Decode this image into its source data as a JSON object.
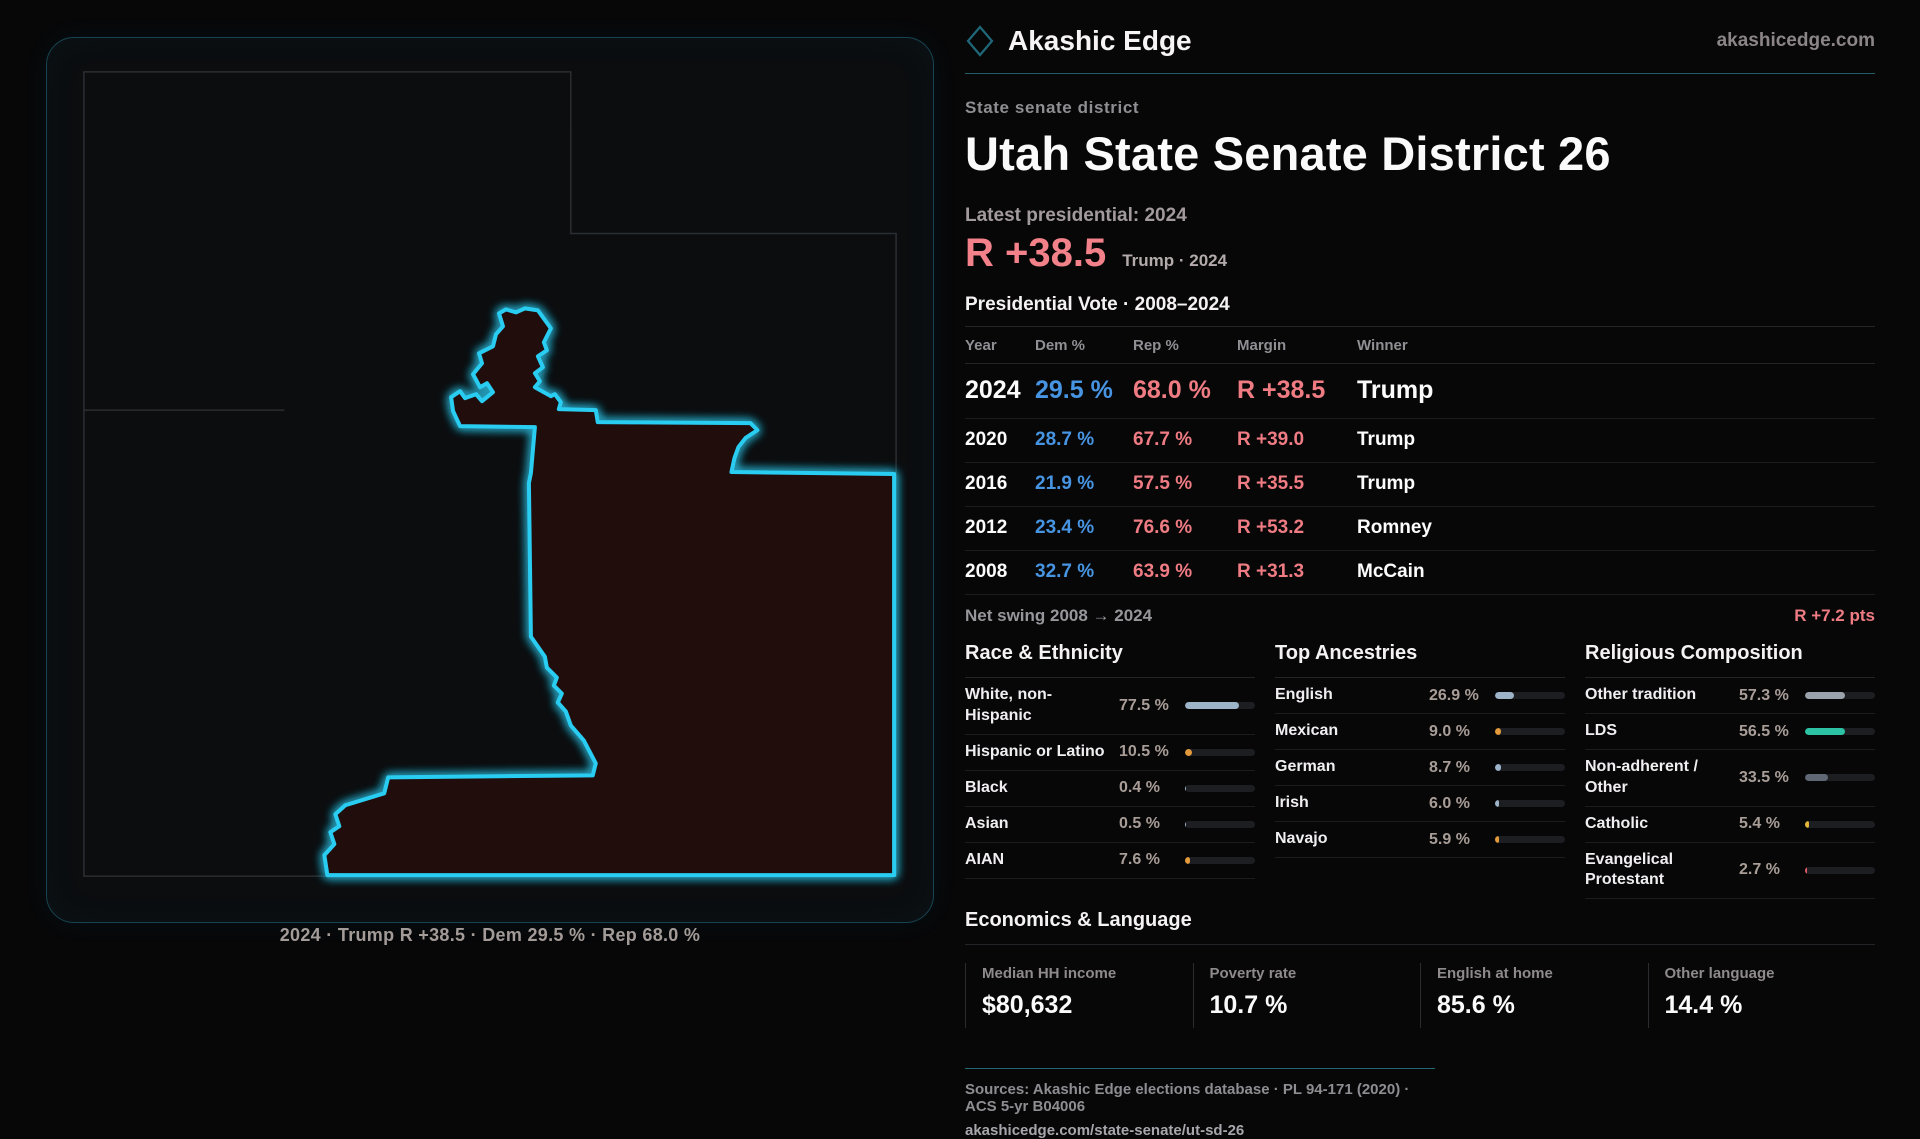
{
  "brand": {
    "name": "Akashic Edge",
    "url": "akashicedge.com",
    "accent_teal": "#2bcdf2",
    "accent_red": "#ef7b83",
    "accent_blue": "#4795e2"
  },
  "eyebrow": "State senate district",
  "title": "Utah State Senate District 26",
  "latest_label": "Latest presidential: 2024",
  "headline": {
    "value": "R +38.5",
    "sub": "Trump · 2024"
  },
  "table": {
    "title": "Presidential Vote · 2008–2024",
    "columns": [
      "Year",
      "Dem %",
      "Rep %",
      "Margin",
      "Winner"
    ],
    "rows": [
      {
        "year": "2024",
        "dem": "29.5 %",
        "rep": "68.0 %",
        "margin": "R +38.5",
        "winner": "Trump"
      },
      {
        "year": "2020",
        "dem": "28.7 %",
        "rep": "67.7 %",
        "margin": "R +39.0",
        "winner": "Trump"
      },
      {
        "year": "2016",
        "dem": "21.9 %",
        "rep": "57.5 %",
        "margin": "R +35.5",
        "winner": "Trump"
      },
      {
        "year": "2012",
        "dem": "23.4 %",
        "rep": "76.6 %",
        "margin": "R +53.2",
        "winner": "Romney"
      },
      {
        "year": "2008",
        "dem": "32.7 %",
        "rep": "63.9 %",
        "margin": "R +31.3",
        "winner": "McCain"
      }
    ],
    "net_swing_label": "Net swing 2008 → 2024",
    "net_swing_value": "R +7.2 pts"
  },
  "demographics": [
    {
      "title": "Race & Ethnicity",
      "items": [
        {
          "label": "White, non-Hispanic",
          "value": "77.5 %",
          "pct": 77.5,
          "color": "#9db3c8"
        },
        {
          "label": "Hispanic or Latino",
          "value": "10.5 %",
          "pct": 10.5,
          "color": "#e39a3b"
        },
        {
          "label": "Black",
          "value": "0.4 %",
          "pct": 0.4,
          "color": "#9db3c8"
        },
        {
          "label": "Asian",
          "value": "0.5 %",
          "pct": 0.5,
          "color": "#9db3c8"
        },
        {
          "label": "AIAN",
          "value": "7.6 %",
          "pct": 7.6,
          "color": "#e39a3b"
        }
      ]
    },
    {
      "title": "Top Ancestries",
      "items": [
        {
          "label": "English",
          "value": "26.9 %",
          "pct": 26.9,
          "color": "#9db3c8"
        },
        {
          "label": "Mexican",
          "value": "9.0 %",
          "pct": 9.0,
          "color": "#e39a3b"
        },
        {
          "label": "German",
          "value": "8.7 %",
          "pct": 8.7,
          "color": "#9db3c8"
        },
        {
          "label": "Irish",
          "value": "6.0 %",
          "pct": 6.0,
          "color": "#9db3c8"
        },
        {
          "label": "Navajo",
          "value": "5.9 %",
          "pct": 5.9,
          "color": "#e39a3b"
        }
      ]
    },
    {
      "title": "Religious Composition",
      "items": [
        {
          "label": "Other tradition",
          "value": "57.3 %",
          "pct": 57.3,
          "color": "#9aa2ab"
        },
        {
          "label": "LDS",
          "value": "56.5 %",
          "pct": 56.5,
          "color": "#2cc3a4"
        },
        {
          "label": "Non-adherent / Other",
          "value": "33.5 %",
          "pct": 33.5,
          "color": "#5f6874"
        },
        {
          "label": "Catholic",
          "value": "5.4 %",
          "pct": 5.4,
          "color": "#e3b63b"
        },
        {
          "label": "Evangelical Protestant",
          "value": "2.7 %",
          "pct": 2.7,
          "color": "#e25a67"
        }
      ]
    }
  ],
  "economics": {
    "title": "Economics & Language",
    "stats": [
      {
        "label": "Median HH income",
        "value": "$80,632"
      },
      {
        "label": "Poverty rate",
        "value": "10.7 %"
      },
      {
        "label": "English at home",
        "value": "85.6 %"
      },
      {
        "label": "Other language",
        "value": "14.4 %"
      }
    ]
  },
  "footer": {
    "sources": "Sources: Akashic Edge elections database · PL 94-171 (2020) · ACS 5-yr B04006",
    "permalink": "akashicedge.com/state-senate/ut-sd-26"
  },
  "map": {
    "caption": "2024 · Trump R +38.5 · Dem 29.5 % · Rep 68.0 %",
    "district_fill": "#201010",
    "district_stroke": "#2bcdf2",
    "state_stroke": "#2b2e32"
  }
}
